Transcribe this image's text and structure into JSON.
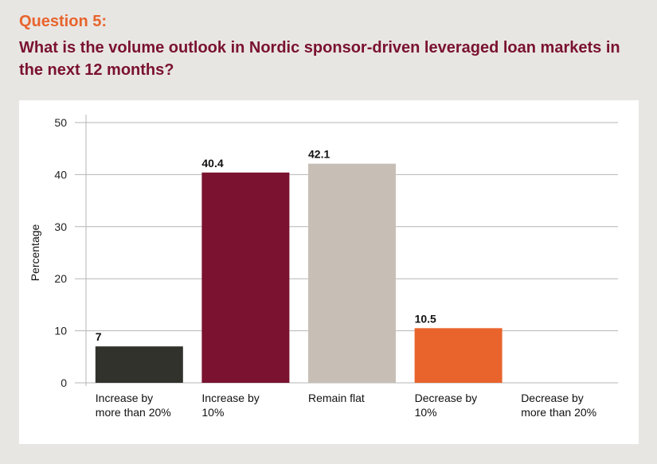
{
  "header": {
    "question_number": "Question 5:",
    "question_text": "What is the volume outlook in Nordic sponsor-driven leveraged loan markets in the next 12 months?"
  },
  "colors": {
    "accent_orange": "#e8642c",
    "title_maroon": "#7a1230",
    "background": "#e8e6e3"
  },
  "chart_data": {
    "type": "bar",
    "title": "",
    "xlabel": "",
    "ylabel": "Percentage",
    "ylim": [
      0,
      50
    ],
    "yticks": [
      0,
      10,
      20,
      30,
      40,
      50
    ],
    "grid": true,
    "categories": [
      [
        "Increase by",
        "more than 20%"
      ],
      [
        "Increase by",
        "10%"
      ],
      [
        "Remain flat"
      ],
      [
        "Decrease by",
        "10%"
      ],
      [
        "Decrease by",
        "more than 20%"
      ]
    ],
    "values": [
      7,
      40.4,
      42.1,
      10.5,
      0
    ],
    "data_labels": [
      "7",
      "40.4",
      "42.1",
      "10.5",
      ""
    ],
    "bar_colors": [
      "#32322c",
      "#7a1230",
      "#c7bfb6",
      "#e8642c",
      "#bbbbbb"
    ]
  }
}
